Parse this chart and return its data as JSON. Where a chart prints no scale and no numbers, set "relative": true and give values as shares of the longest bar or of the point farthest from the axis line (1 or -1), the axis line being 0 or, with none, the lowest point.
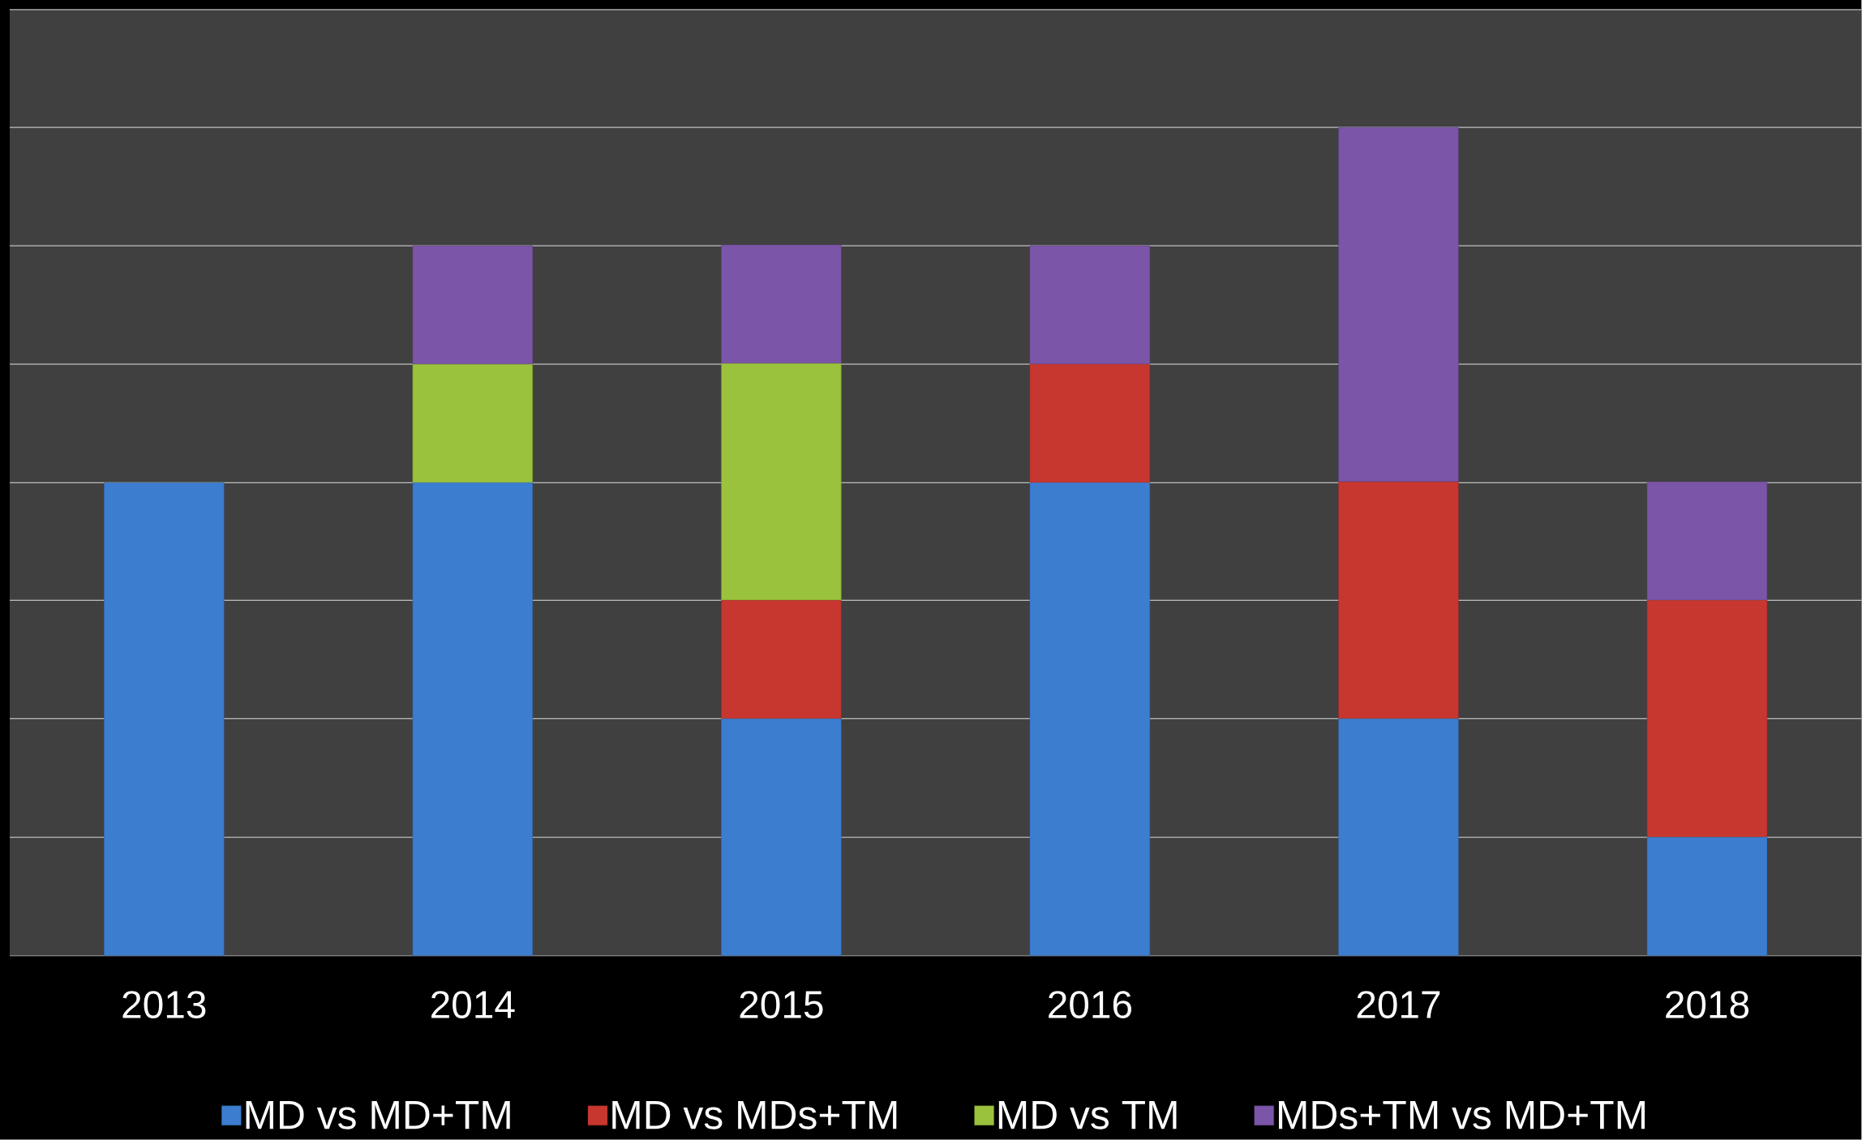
{
  "chart_data": {
    "type": "bar",
    "stacked": true,
    "relative": true,
    "grid": "y",
    "legend": "bottom",
    "categories": [
      "2013",
      "2014",
      "2015",
      "2016",
      "2017",
      "2018"
    ],
    "series": [
      {
        "name": "MD vs MD+TM",
        "color": "#3c7dd0",
        "values": [
          0.571,
          0.571,
          0.286,
          0.571,
          0.286,
          0.143
        ]
      },
      {
        "name": "MD vs MDs+TM",
        "color": "#c8372f",
        "values": [
          0,
          0,
          0.143,
          0.143,
          0.286,
          0.286
        ]
      },
      {
        "name": "MD vs TM",
        "color": "#9bc23c",
        "values": [
          0,
          0.143,
          0.286,
          0,
          0,
          0
        ]
      },
      {
        "name": "MDs+TM vs MD+TM",
        "color": "#7b55a8",
        "values": [
          0,
          0.143,
          0.143,
          0.143,
          0.428,
          0.143
        ]
      }
    ]
  }
}
